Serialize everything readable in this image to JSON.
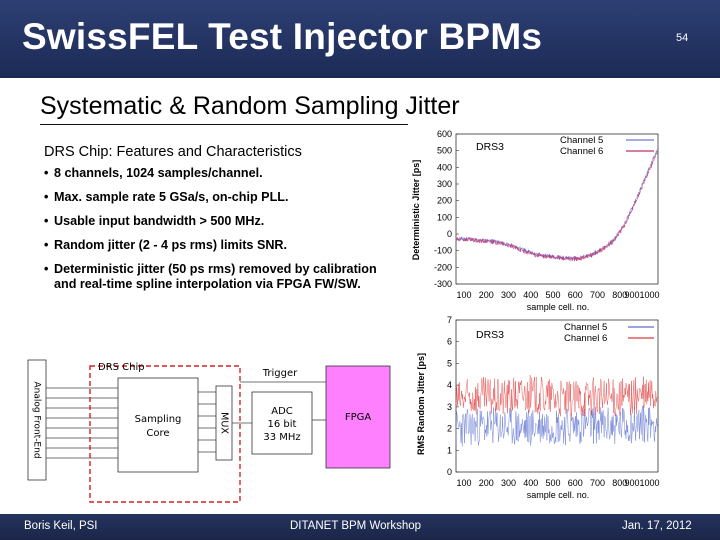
{
  "slide": {
    "title": "SwissFEL Test Injector BPMs",
    "number": "54",
    "subtitle": "Systematic & Random Sampling Jitter"
  },
  "features": {
    "heading": "DRS Chip: Features and Characteristics",
    "bullet_char": "•",
    "items": [
      "8 channels, 1024 samples/channel.",
      "Max. sample rate 5 GSa/s, on-chip PLL.",
      "Usable input bandwidth > 500 MHz.",
      "Random jitter (2 - 4 ps rms) limits SNR.",
      "Deterministic jitter (50 ps rms) removed by calibration and real-time spline interpolation via FPGA FW/SW."
    ]
  },
  "diagram": {
    "chip_label": "DRS Chip",
    "afe_label": "Analog Front-End",
    "sampling_label_1": "Sampling",
    "sampling_label_2": "Core",
    "mux_label": "MUX",
    "trigger_label": "Trigger",
    "adc_line1": "ADC",
    "adc_line2": "16 bit",
    "adc_line3": "33 MHz",
    "fpga_label": "FPGA",
    "fpga_color": "#ff80ff",
    "chip_outline_color": "#d4202a"
  },
  "footer": {
    "author": "Boris Keil, PSI",
    "event": "DITANET BPM Workshop",
    "date": "Jan. 17, 2012"
  },
  "chart_data": [
    {
      "type": "line",
      "annotation": "DRS3",
      "ylabel": "Deterministic Jitter [ps]",
      "xlabel": "sample cell. no.",
      "ylim": [
        -300,
        600
      ],
      "xlim": [
        100,
        1000
      ],
      "yticks": [
        "600",
        "500",
        "400",
        "300",
        "200",
        "100",
        "0",
        "-100",
        "-200",
        "-300"
      ],
      "xticks": [
        "100",
        "200",
        "300",
        "400",
        "500",
        "600",
        "700",
        "800",
        "9001000"
      ],
      "legend_position": "top-right",
      "grid": false,
      "series": [
        {
          "name": "Channel 5",
          "color": "#6a7fd6",
          "x": [
            100,
            150,
            200,
            250,
            300,
            350,
            400,
            450,
            500,
            550,
            600,
            650,
            700,
            750,
            800,
            850,
            900,
            950,
            1000
          ],
          "y": [
            -30,
            -30,
            -40,
            -40,
            -50,
            -70,
            -95,
            -120,
            -130,
            -140,
            -145,
            -145,
            -125,
            -90,
            -40,
            60,
            200,
            360,
            520
          ]
        },
        {
          "name": "Channel 6",
          "color": "#c0306a",
          "x": [
            100,
            150,
            200,
            250,
            300,
            350,
            400,
            450,
            500,
            550,
            600,
            650,
            700,
            750,
            800,
            850,
            900,
            950,
            1000
          ],
          "y": [
            -35,
            -32,
            -42,
            -45,
            -55,
            -75,
            -100,
            -125,
            -135,
            -140,
            -150,
            -148,
            -130,
            -95,
            -45,
            50,
            190,
            350,
            500
          ]
        }
      ]
    },
    {
      "type": "line",
      "annotation": "DRS3",
      "ylabel": "RMS Random Jitter [ps]",
      "xlabel": "sample cell. no.",
      "ylim": [
        0,
        7
      ],
      "xlim": [
        100,
        1000
      ],
      "yticks": [
        "7",
        "6",
        "5",
        "4",
        "3",
        "2",
        "1",
        "0"
      ],
      "xticks": [
        "100",
        "200",
        "300",
        "400",
        "500",
        "600",
        "700",
        "800",
        "9001000"
      ],
      "legend_position": "top-right",
      "grid": false,
      "series": [
        {
          "name": "Channel 5",
          "color": "#5a6fd0",
          "x": [
            100,
            200,
            300,
            400,
            500,
            600,
            700,
            800,
            900,
            1000
          ],
          "y": [
            2.0,
            2.1,
            2.1,
            2.0,
            2.2,
            2.1,
            2.2,
            2.1,
            2.2,
            2.3
          ]
        },
        {
          "name": "Channel 6",
          "color": "#e23a3a",
          "x": [
            100,
            200,
            300,
            400,
            500,
            600,
            700,
            800,
            900,
            1000
          ],
          "y": [
            3.3,
            3.5,
            3.4,
            3.6,
            3.5,
            3.3,
            3.5,
            3.4,
            3.5,
            3.6
          ]
        }
      ]
    }
  ]
}
